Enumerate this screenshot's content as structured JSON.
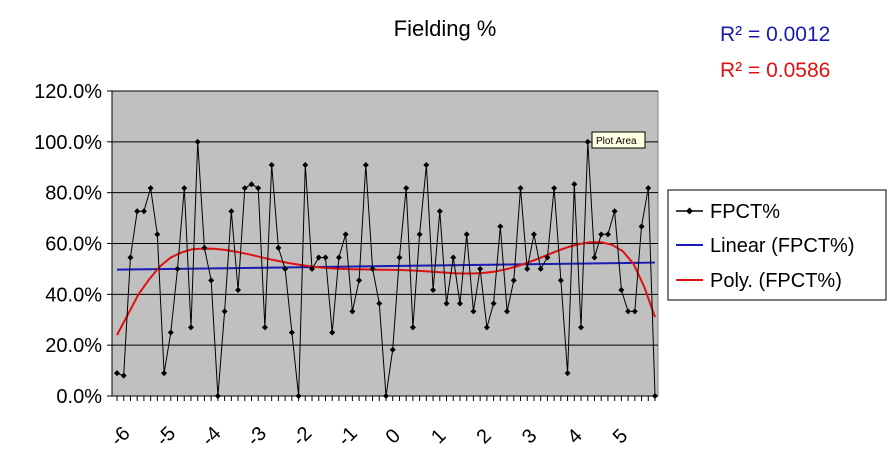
{
  "chart_data": {
    "type": "line",
    "title": "Fielding %",
    "r2_labels": [
      {
        "text": "R² = 0.0012",
        "color": "#1a1ab4"
      },
      {
        "text": "R² = 0.0586",
        "color": "#e01010"
      }
    ],
    "xlabel": "",
    "ylabel": "",
    "ylim": [
      0,
      1.2
    ],
    "yticks": [
      "0.0%",
      "20.0%",
      "40.0%",
      "60.0%",
      "80.0%",
      "100.0%",
      "120.0%"
    ],
    "xtick_labels": [
      "-6",
      "-5",
      "-4",
      "-3",
      "-2",
      "-1",
      "0",
      "1",
      "2",
      "3",
      "4",
      "5"
    ],
    "tooltip": "Plot Area",
    "grid": true,
    "plot_background": "#c0c0c0",
    "legend_position": "right",
    "legend": [
      {
        "name": "FPCT%",
        "color": "#000000",
        "style": "line-diamond"
      },
      {
        "name": "Linear (FPCT%)",
        "color": "#1a1ab4",
        "style": "line"
      },
      {
        "name": "Poly. (FPCT%)",
        "color": "#e01010",
        "style": "line"
      }
    ],
    "series": [
      {
        "name": "FPCT%",
        "color": "#000000",
        "values": [
          0.09,
          0.08,
          0.545,
          0.727,
          0.727,
          0.818,
          0.636,
          0.09,
          0.25,
          0.5,
          0.818,
          0.27,
          1.0,
          0.583,
          0.455,
          0.0,
          0.333,
          0.727,
          0.417,
          0.818,
          0.833,
          0.818,
          0.27,
          0.909,
          0.583,
          0.5,
          0.25,
          0.0,
          0.909,
          0.5,
          0.545,
          0.545,
          0.25,
          0.545,
          0.636,
          0.333,
          0.455,
          0.909,
          0.5,
          0.364,
          0.0,
          0.182,
          0.545,
          0.818,
          0.27,
          0.636,
          0.909,
          0.417,
          0.727,
          0.364,
          0.545,
          0.364,
          0.636,
          0.333,
          0.5,
          0.27,
          0.364,
          0.667,
          0.333,
          0.455,
          0.818,
          0.5,
          0.636,
          0.5,
          0.545,
          0.818,
          0.455,
          0.09,
          0.833,
          0.27,
          1.0,
          0.545,
          0.636,
          0.636,
          0.727,
          0.417,
          0.333,
          0.333,
          0.667,
          0.818,
          0.0
        ]
      },
      {
        "name": "Linear (FPCT%)",
        "color": "#1a1ab4",
        "values": [
          0.497,
          0.525
        ]
      },
      {
        "name": "Poly. (FPCT%)",
        "color": "#e01010",
        "values": [
          0.24,
          0.32,
          0.4,
          0.46,
          0.51,
          0.545,
          0.565,
          0.577,
          0.58,
          0.579,
          0.575,
          0.568,
          0.56,
          0.55,
          0.54,
          0.531,
          0.523,
          0.516,
          0.51,
          0.505,
          0.502,
          0.5,
          0.499,
          0.498,
          0.497,
          0.497,
          0.496,
          0.495,
          0.493,
          0.49,
          0.487,
          0.484,
          0.482,
          0.482,
          0.484,
          0.489,
          0.497,
          0.508,
          0.522,
          0.538,
          0.555,
          0.572,
          0.587,
          0.598,
          0.605,
          0.605,
          0.595,
          0.57,
          0.52,
          0.43,
          0.31
        ]
      }
    ]
  }
}
